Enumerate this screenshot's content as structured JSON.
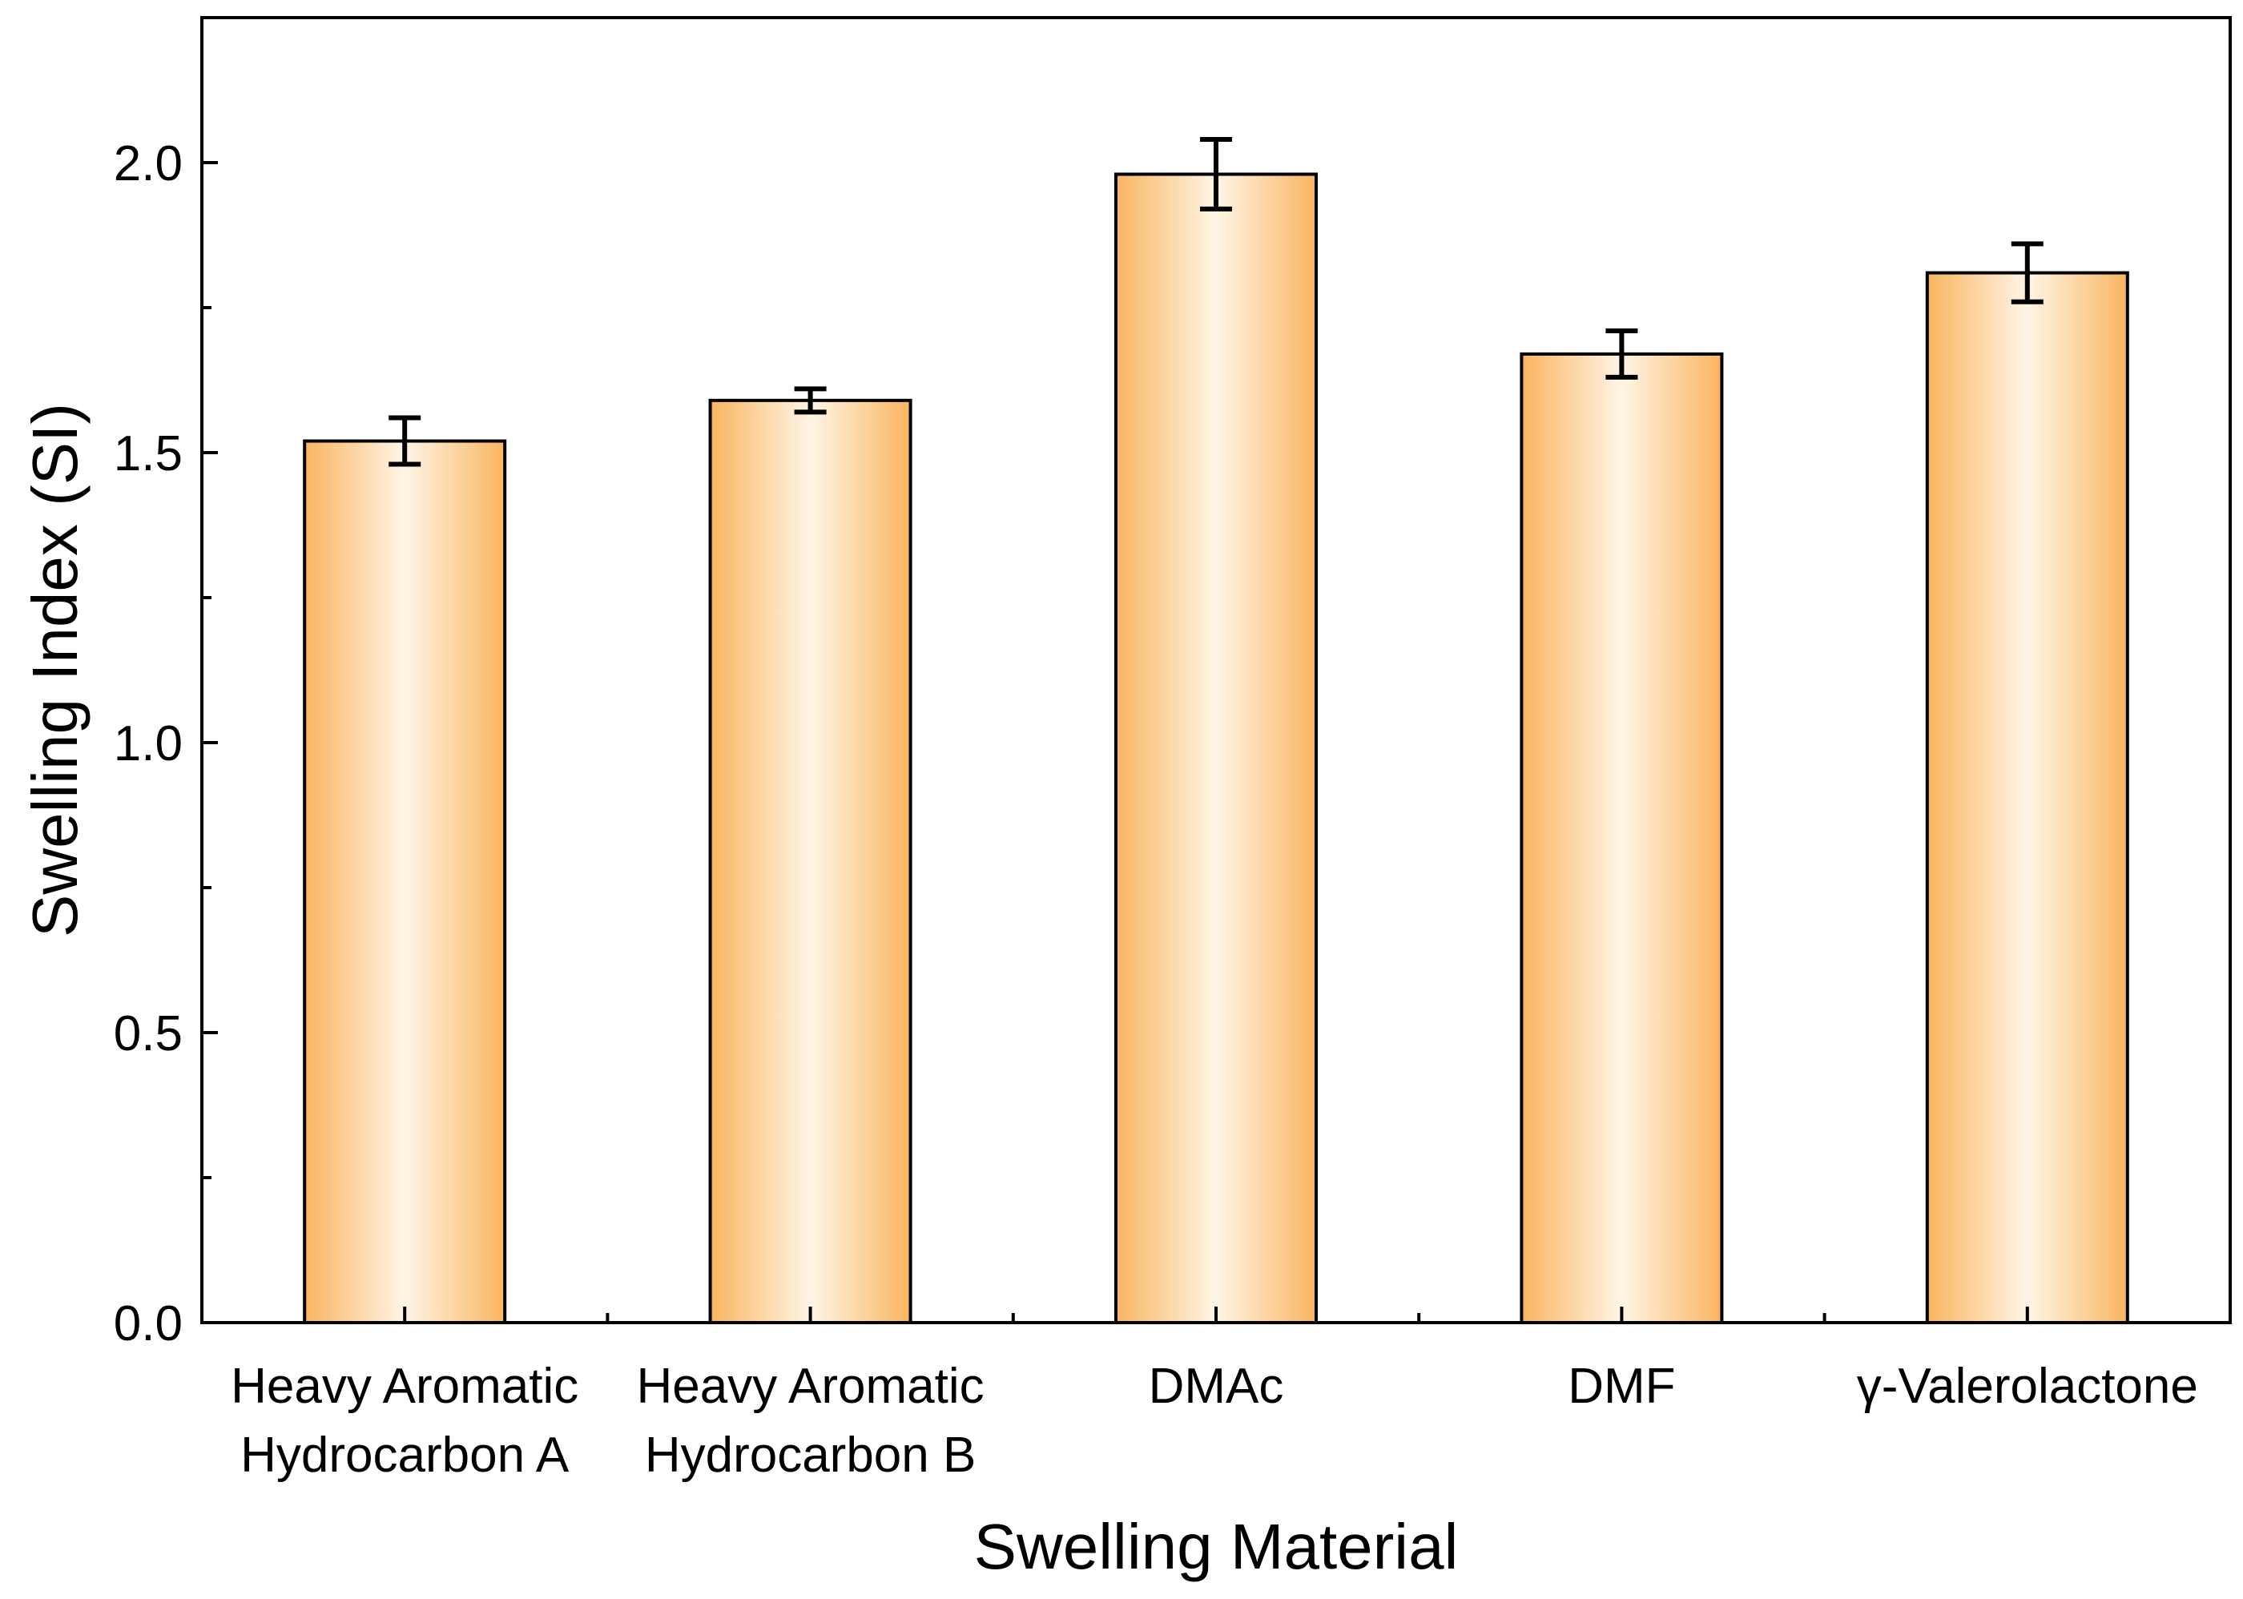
{
  "chart_data": {
    "type": "bar",
    "title": "",
    "xlabel": "Swelling Material",
    "ylabel": "Swelling Index (SI)",
    "categories": [
      [
        "Heavy Aromatic",
        "Hydrocarbon A"
      ],
      [
        "Heavy Aromatic",
        "Hydrocarbon B"
      ],
      [
        "DMAc"
      ],
      [
        "DMF"
      ],
      [
        "γ-Valerolactone"
      ]
    ],
    "values": [
      1.52,
      1.59,
      1.98,
      1.67,
      1.81
    ],
    "errors": [
      0.04,
      0.02,
      0.06,
      0.04,
      0.05
    ],
    "ylim": [
      0,
      2.25
    ],
    "yticks": [
      "0.0",
      "0.5",
      "1.0",
      "1.5",
      "2.0"
    ],
    "ytick_values": [
      0,
      0.5,
      1.0,
      1.5,
      2.0
    ],
    "yminor_values": [
      0.25,
      0.75,
      1.25,
      1.75
    ],
    "grid": false,
    "bar_colors": {
      "edge": "#f9b560",
      "center": "#fff5e6"
    }
  }
}
